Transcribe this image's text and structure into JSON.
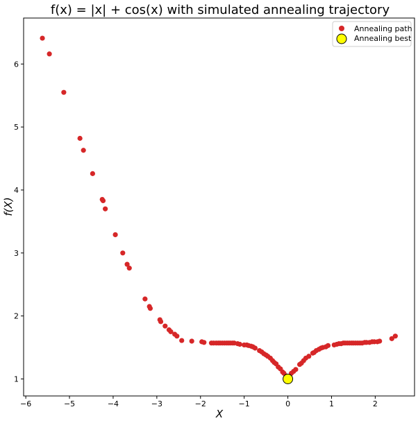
{
  "chart_data": {
    "type": "scatter",
    "title": "f(x) = |x| + cos(x) with simulated annealing trajectory",
    "xlabel": "X",
    "ylabel": "f(X)",
    "xlim": [
      -6.05,
      2.9
    ],
    "ylim": [
      0.73,
      6.73
    ],
    "xticks": [
      -6,
      -5,
      -4,
      -3,
      -2,
      -1,
      0,
      1,
      2
    ],
    "xtick_labels": [
      "−6",
      "−5",
      "−4",
      "−3",
      "−2",
      "−1",
      "0",
      "1",
      "2"
    ],
    "yticks": [
      1,
      2,
      3,
      4,
      5,
      6
    ],
    "ytick_labels": [
      "1",
      "2",
      "3",
      "4",
      "5",
      "6"
    ],
    "grid": false,
    "legend_position": "top-right",
    "series": [
      {
        "name": "Annealing path",
        "color": "#d62728",
        "x": [
          -5.62,
          -5.46,
          -5.13,
          -4.76,
          -4.68,
          -4.47,
          -4.25,
          -4.23,
          -4.18,
          -3.95,
          -3.78,
          -3.68,
          -3.63,
          -3.27,
          -3.17,
          -3.15,
          -2.93,
          -2.91,
          -2.81,
          -2.72,
          -2.68,
          -2.59,
          -2.54,
          -2.43,
          -2.2,
          -1.97,
          -1.92,
          -1.75,
          -1.7,
          -1.64,
          -1.59,
          -1.55,
          -1.5,
          -1.45,
          -1.4,
          -1.36,
          -1.32,
          -1.27,
          -1.23,
          -1.15,
          -1.1,
          -1.0,
          -0.94,
          -0.9,
          -0.84,
          -0.8,
          -0.75,
          -0.65,
          -0.6,
          -0.55,
          -0.5,
          -0.46,
          -0.4,
          -0.35,
          -0.31,
          -0.27,
          -0.22,
          -0.17,
          -0.12,
          -0.09,
          -0.04,
          0.04,
          0.08,
          0.13,
          0.18,
          0.27,
          0.31,
          0.36,
          0.41,
          0.48,
          0.57,
          0.6,
          0.65,
          0.71,
          0.76,
          0.8,
          0.87,
          0.92,
          1.06,
          1.12,
          1.17,
          1.22,
          1.27,
          1.31,
          1.36,
          1.41,
          1.46,
          1.5,
          1.55,
          1.6,
          1.65,
          1.7,
          1.76,
          1.8,
          1.87,
          1.93,
          1.98,
          2.05,
          2.1,
          2.38,
          2.46
        ],
        "y": [
          6.41,
          6.16,
          5.55,
          4.82,
          4.63,
          4.26,
          3.85,
          3.83,
          3.7,
          3.29,
          3.0,
          2.82,
          2.76,
          2.27,
          2.15,
          2.12,
          1.94,
          1.91,
          1.84,
          1.78,
          1.75,
          1.71,
          1.68,
          1.61,
          1.6,
          1.59,
          1.58,
          1.57,
          1.57,
          1.57,
          1.57,
          1.57,
          1.57,
          1.57,
          1.57,
          1.57,
          1.57,
          1.57,
          1.57,
          1.56,
          1.55,
          1.54,
          1.54,
          1.53,
          1.52,
          1.51,
          1.49,
          1.45,
          1.43,
          1.4,
          1.38,
          1.36,
          1.33,
          1.29,
          1.26,
          1.24,
          1.19,
          1.16,
          1.11,
          1.09,
          1.05,
          1.04,
          1.09,
          1.12,
          1.15,
          1.23,
          1.25,
          1.29,
          1.33,
          1.36,
          1.41,
          1.42,
          1.45,
          1.47,
          1.49,
          1.5,
          1.51,
          1.53,
          1.54,
          1.55,
          1.56,
          1.56,
          1.57,
          1.57,
          1.57,
          1.57,
          1.57,
          1.57,
          1.57,
          1.57,
          1.57,
          1.57,
          1.58,
          1.58,
          1.58,
          1.59,
          1.59,
          1.59,
          1.6,
          1.64,
          1.68
        ]
      },
      {
        "name": "Annealing best",
        "color": "#ffff00",
        "edgecolor": "#000000",
        "x": [
          0.0
        ],
        "y": [
          1.0
        ]
      }
    ]
  }
}
